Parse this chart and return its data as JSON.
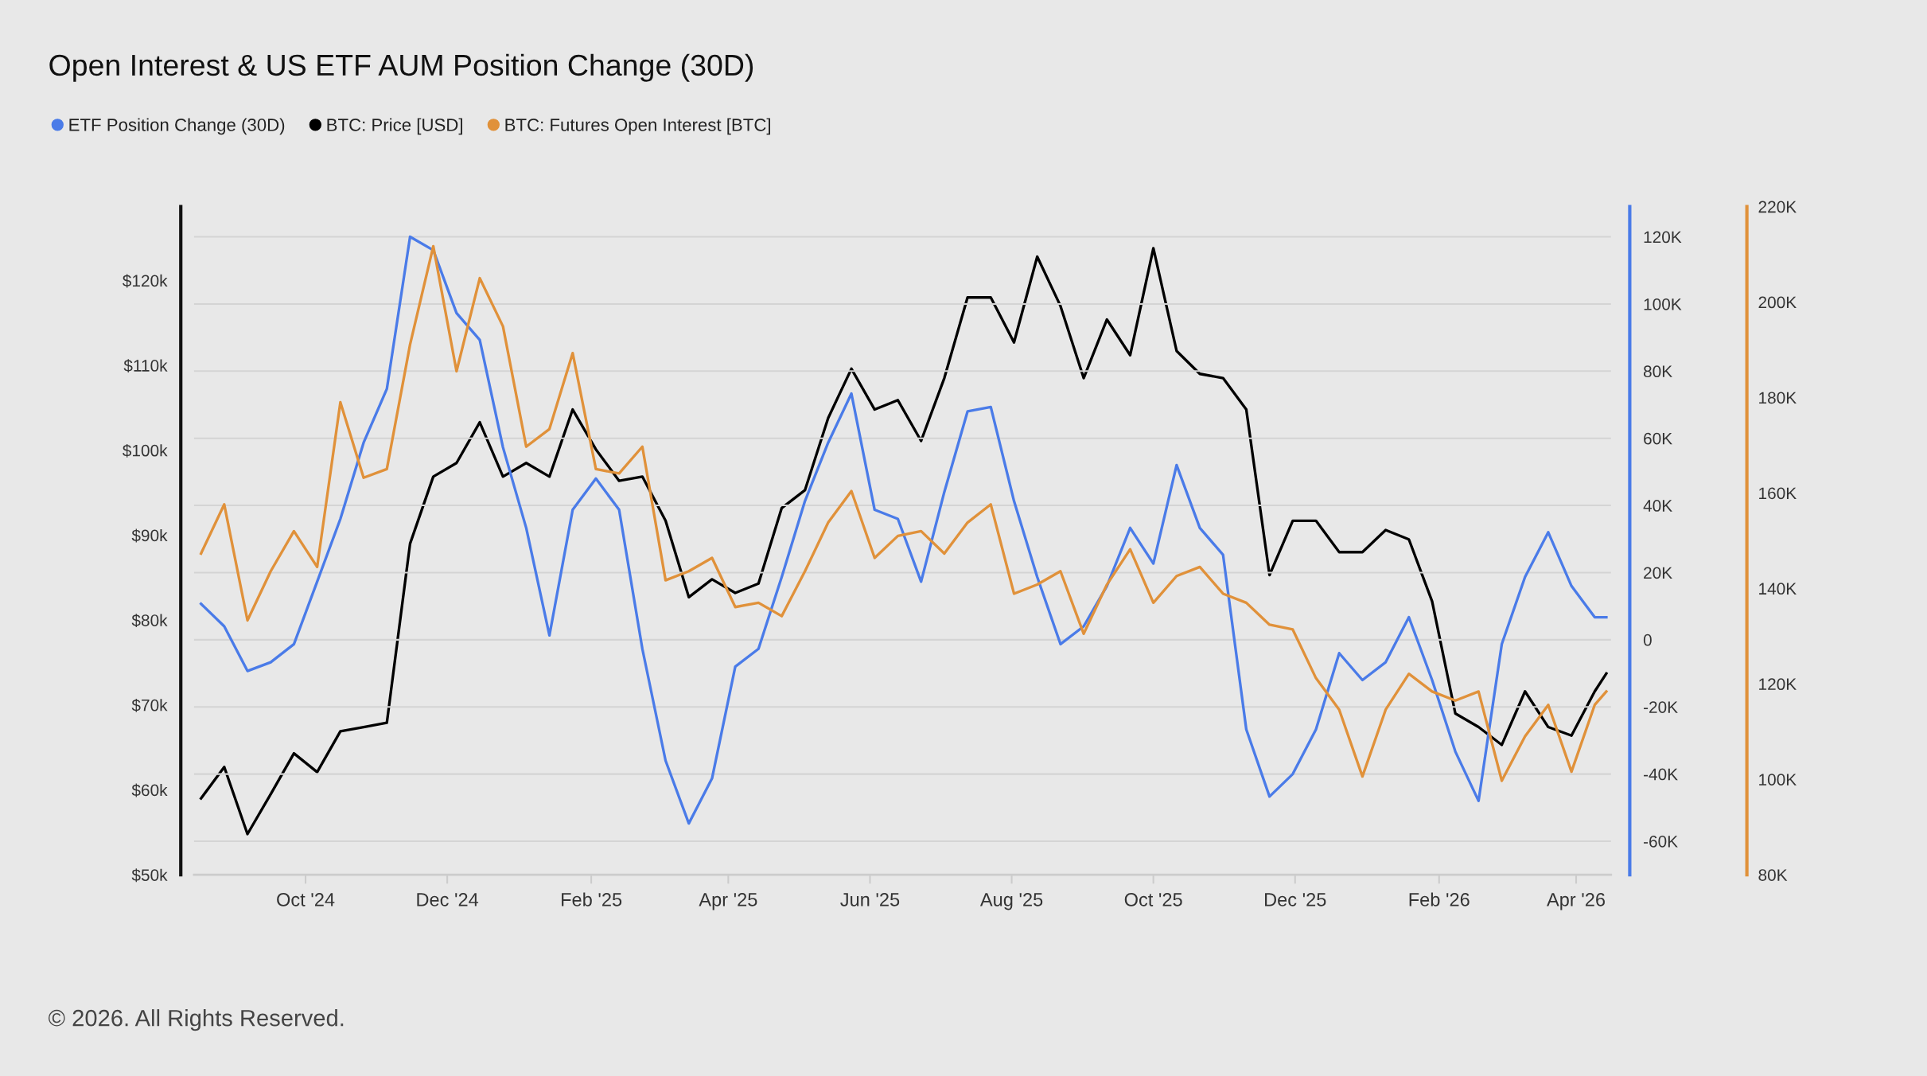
{
  "chart_data": {
    "type": "line",
    "title": "Open Interest & US ETF AUM Position Change (30D)",
    "x": [
      "2024-08-17",
      "2024-08-27",
      "2024-09-06",
      "2024-09-16",
      "2024-09-26",
      "2024-10-06",
      "2024-10-16",
      "2024-10-26",
      "2024-11-05",
      "2024-11-15",
      "2024-11-25",
      "2024-12-05",
      "2024-12-15",
      "2024-12-25",
      "2025-01-04",
      "2025-01-14",
      "2025-01-24",
      "2025-02-03",
      "2025-02-13",
      "2025-02-23",
      "2025-03-05",
      "2025-03-15",
      "2025-03-25",
      "2025-04-04",
      "2025-04-14",
      "2025-04-24",
      "2025-05-04",
      "2025-05-14",
      "2025-05-24",
      "2025-06-03",
      "2025-06-13",
      "2025-06-23",
      "2025-07-03",
      "2025-07-13",
      "2025-07-23",
      "2025-08-02",
      "2025-08-12",
      "2025-08-22",
      "2025-09-01",
      "2025-09-11",
      "2025-09-21",
      "2025-10-01",
      "2025-10-11",
      "2025-10-21",
      "2025-10-31",
      "2025-11-10",
      "2025-11-20",
      "2025-11-30",
      "2025-12-10",
      "2025-12-20",
      "2025-12-30",
      "2026-01-09",
      "2026-01-19",
      "2026-01-29",
      "2026-02-08",
      "2026-02-18",
      "2026-02-28",
      "2026-03-10",
      "2026-03-20",
      "2026-03-30",
      "2026-04-09",
      "2026-04-14"
    ],
    "series": [
      {
        "name": "ETF Position Change (30D)",
        "color": "#4a7be8",
        "axis": "y2",
        "values": [
          10700,
          4000,
          -9300,
          -6700,
          -1300,
          17300,
          36000,
          58700,
          74700,
          120000,
          116000,
          97300,
          89300,
          57300,
          33300,
          1300,
          38700,
          48000,
          38700,
          -2700,
          -36000,
          -54700,
          -41300,
          -8000,
          -2700,
          18700,
          41300,
          58700,
          73300,
          38700,
          36000,
          17300,
          44000,
          68000,
          69300,
          41300,
          18700,
          -1300,
          4000,
          16000,
          33300,
          22700,
          52000,
          33300,
          25300,
          -26700,
          -46700,
          -40000,
          -26700,
          -4000,
          -12000,
          -6700,
          6700,
          -12000,
          -33300,
          -48000,
          -1300,
          18700,
          32000,
          16000,
          6700,
          6700
        ]
      },
      {
        "name": "BTC: Price [USD]",
        "color": "#000000",
        "axis": "y",
        "values": [
          59000,
          62700,
          54800,
          59500,
          64300,
          62100,
          66900,
          67400,
          67900,
          89000,
          96900,
          98500,
          103300,
          96900,
          98500,
          96900,
          104800,
          100100,
          96400,
          96900,
          91700,
          82700,
          84800,
          83200,
          84300,
          93200,
          95300,
          103800,
          109600,
          104800,
          105900,
          101100,
          108500,
          118000,
          118000,
          112700,
          122800,
          117000,
          108500,
          115400,
          111200,
          123800,
          111700,
          109000,
          108500,
          104800,
          85300,
          91700,
          91700,
          88000,
          88000,
          90600,
          89500,
          82200,
          69000,
          67400,
          65300,
          71600,
          67400,
          66400,
          71600,
          73700
        ]
      },
      {
        "name": "BTC: Futures Open Interest [BTC]",
        "color": "#e0913a",
        "axis": "y3",
        "values": [
          147300,
          157600,
          133300,
          143600,
          152000,
          144500,
          179000,
          163200,
          165000,
          191100,
          211700,
          185500,
          205000,
          194900,
          169700,
          173400,
          189300,
          165000,
          164100,
          169700,
          141700,
          143600,
          146400,
          136100,
          137000,
          134200,
          143600,
          153800,
          160400,
          146400,
          151000,
          152000,
          147300,
          153800,
          157600,
          138900,
          140800,
          143600,
          130500,
          140800,
          148200,
          137000,
          142600,
          144500,
          138900,
          137000,
          132400,
          131400,
          121200,
          114600,
          100600,
          114600,
          122100,
          118400,
          116500,
          118400,
          99700,
          109000,
          115600,
          101600,
          115600,
          118400
        ]
      }
    ],
    "xlim": [
      "2024-08-14",
      "2026-04-16"
    ],
    "xticks": [
      {
        "value": "2024-10-01",
        "label": "Oct '24"
      },
      {
        "value": "2024-12-01",
        "label": "Dec '24"
      },
      {
        "value": "2025-02-01",
        "label": "Feb '25"
      },
      {
        "value": "2025-04-01",
        "label": "Apr '25"
      },
      {
        "value": "2025-06-01",
        "label": "Jun '25"
      },
      {
        "value": "2025-08-01",
        "label": "Aug '25"
      },
      {
        "value": "2025-10-01",
        "label": "Oct '25"
      },
      {
        "value": "2025-12-01",
        "label": "Dec '25"
      },
      {
        "value": "2026-02-01",
        "label": "Feb '26"
      },
      {
        "value": "2026-04-01",
        "label": "Apr '26"
      }
    ],
    "ylim": [
      50000,
      128700
    ],
    "yticks": [
      {
        "value": 50000,
        "label": "$50k"
      },
      {
        "value": 60000,
        "label": "$60k"
      },
      {
        "value": 70000,
        "label": "$70k"
      },
      {
        "value": 80000,
        "label": "$80k"
      },
      {
        "value": 90000,
        "label": "$90k"
      },
      {
        "value": 100000,
        "label": "$100k"
      },
      {
        "value": 110000,
        "label": "$110k"
      },
      {
        "value": 120000,
        "label": "$120k"
      }
    ],
    "y2lim": [
      -70000,
      129000
    ],
    "y2ticks": [
      {
        "value": -60000,
        "label": "-60K"
      },
      {
        "value": -40000,
        "label": "-40K"
      },
      {
        "value": -20000,
        "label": "-20K"
      },
      0,
      {
        "value": 20000,
        "label": "20K"
      },
      {
        "value": 40000,
        "label": "40K"
      },
      {
        "value": 60000,
        "label": "60K"
      },
      {
        "value": 80000,
        "label": "80K"
      },
      {
        "value": 100000,
        "label": "100K"
      },
      {
        "value": 120000,
        "label": "120K"
      }
    ],
    "y3lim": [
      80000,
      220000
    ],
    "y3ticks": [
      {
        "value": 80000,
        "label": "80K"
      },
      {
        "value": 100000,
        "label": "100K"
      },
      {
        "value": 120000,
        "label": "120K"
      },
      {
        "value": 140000,
        "label": "140K"
      },
      {
        "value": 160000,
        "label": "160K"
      },
      {
        "value": 180000,
        "label": "180K"
      },
      {
        "value": 200000,
        "label": "200K"
      },
      {
        "value": 220000,
        "label": "220K"
      }
    ],
    "grid": "y",
    "legend": "top left",
    "annotations": [
      "© 2026. All Rights Reserved."
    ]
  }
}
